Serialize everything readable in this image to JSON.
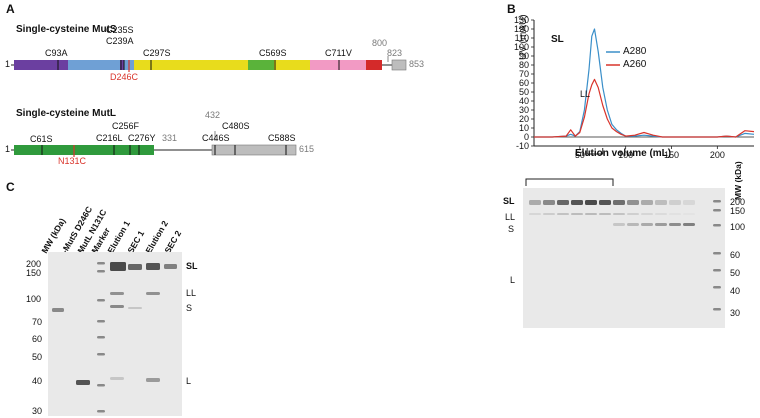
{
  "panels": {
    "A": "A",
    "B": "B",
    "C": "C"
  },
  "mutS": {
    "title": "Single-cysteine MutS",
    "start": "1",
    "end": "853",
    "right_labels": [
      "800",
      "823"
    ],
    "mutations": [
      "C93A",
      "C235S",
      "C239A",
      "C297S",
      "C569S",
      "C711V"
    ],
    "introduced": "D246C"
  },
  "mutL": {
    "title": "Single-cysteine MutL",
    "start": "1",
    "mid": "331",
    "linker": "432",
    "end": "615",
    "mutations": [
      "C61S",
      "C256F",
      "C216L",
      "C276Y",
      "C480S",
      "C446S",
      "C588S"
    ],
    "introduced": "N131C"
  },
  "chromatogram": {
    "ylabel": "UV (mAU)",
    "xlabel": "Elution volume (mL)",
    "peak_labels": [
      "SL",
      "LL"
    ],
    "legend": [
      {
        "name": "A280",
        "color": "#3a8fc9"
      },
      {
        "name": "A260",
        "color": "#d9342b"
      }
    ]
  },
  "chart_data": {
    "type": "line",
    "xlabel": "Elution volume (mL)",
    "ylabel": "UV (mAU)",
    "xlim": [
      0,
      240
    ],
    "ylim": [
      -10,
      130
    ],
    "xticks": [
      "50",
      "100",
      "150",
      "200"
    ],
    "yticks": [
      "-10",
      "0",
      "10",
      "20",
      "30",
      "40",
      "50",
      "60",
      "70",
      "80",
      "90",
      "100",
      "110",
      "120",
      "130"
    ],
    "x": [
      0,
      20,
      35,
      40,
      45,
      50,
      55,
      60,
      63,
      66,
      70,
      75,
      80,
      85,
      90,
      95,
      100,
      110,
      120,
      130,
      140,
      150,
      160,
      175,
      190,
      200,
      210,
      220,
      230,
      240
    ],
    "series": [
      {
        "name": "A280",
        "color": "#3a8fc9",
        "values": [
          0,
          0,
          1,
          3,
          1,
          6,
          30,
          75,
          112,
          120,
          95,
          55,
          30,
          14,
          8,
          4,
          1,
          1,
          2,
          1,
          0,
          0,
          0,
          0,
          0,
          0,
          1,
          0,
          4,
          3
        ]
      },
      {
        "name": "A260",
        "color": "#d9342b",
        "values": [
          0,
          0,
          1,
          8,
          1,
          5,
          22,
          48,
          58,
          64,
          55,
          35,
          20,
          10,
          6,
          3,
          1,
          2,
          5,
          2,
          0,
          0,
          0,
          0,
          0,
          0,
          1,
          0,
          7,
          6
        ]
      }
    ]
  },
  "gel_right": {
    "left_labels": [
      "SL",
      "LL",
      "S",
      "L"
    ],
    "mw_title": "MW (kDa)",
    "mw_values": [
      "200",
      "150",
      "100",
      "60",
      "50",
      "40",
      "30"
    ]
  },
  "gel_left": {
    "lanes": [
      "MW (kDa)",
      "-MutS D246C",
      "MutL N131C",
      "Marker",
      "Elution 1",
      "SEC 1",
      "Elution 2",
      "SEC 2"
    ],
    "mw_values": [
      "200",
      "150",
      "100",
      "70",
      "60",
      "50",
      "40",
      "30"
    ],
    "right_labels": [
      "SL",
      "LL",
      "S",
      "L"
    ]
  }
}
